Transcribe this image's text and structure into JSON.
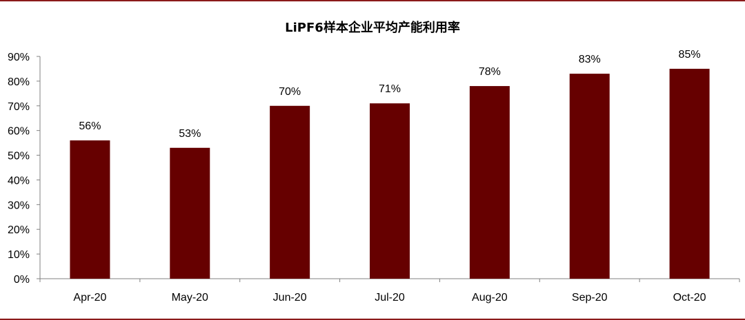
{
  "chart_data": {
    "type": "bar",
    "title": "LiPF6样本企业平均产能利用率",
    "categories": [
      "Apr-20",
      "May-20",
      "Jun-20",
      "Jul-20",
      "Aug-20",
      "Sep-20",
      "Oct-20"
    ],
    "values": [
      56,
      53,
      70,
      71,
      78,
      83,
      85
    ],
    "data_labels": [
      "56%",
      "53%",
      "70%",
      "71%",
      "78%",
      "83%",
      "85%"
    ],
    "y_ticks": [
      "0%",
      "10%",
      "20%",
      "30%",
      "40%",
      "50%",
      "60%",
      "70%",
      "80%",
      "90%"
    ],
    "ylim": [
      0,
      90
    ],
    "xlabel": "",
    "ylabel": "",
    "bar_color": "#660000",
    "grid": false,
    "legend": "none"
  }
}
